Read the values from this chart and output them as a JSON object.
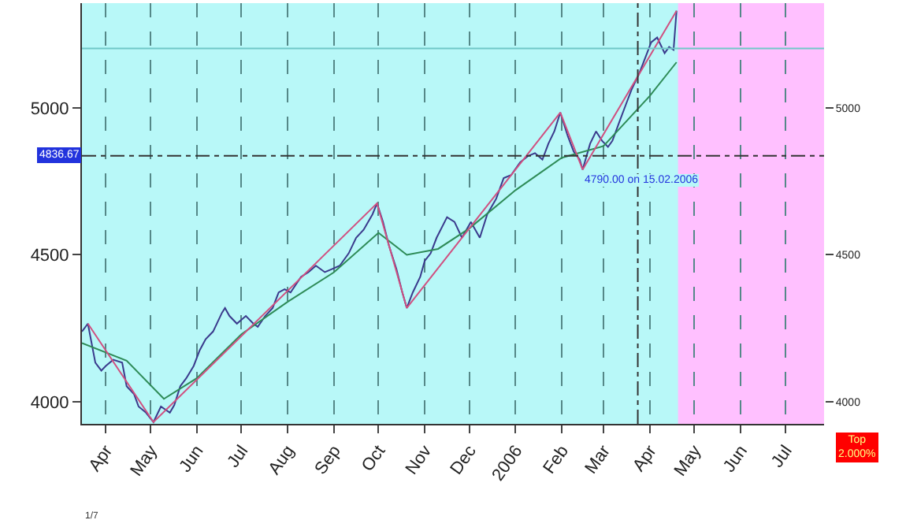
{
  "chart_data": {
    "type": "line",
    "x": [
      "2005-03-16",
      "2005-03-20",
      "2005-03-25",
      "2005-03-29",
      "2005-04-01",
      "2005-04-06",
      "2005-04-12",
      "2005-04-15",
      "2005-04-20",
      "2005-04-23",
      "2005-04-28",
      "2005-05-03",
      "2005-05-08",
      "2005-05-14",
      "2005-05-17",
      "2005-05-21",
      "2005-05-25",
      "2005-05-30",
      "2005-06-03",
      "2005-06-07",
      "2005-06-12",
      "2005-06-18",
      "2005-06-20",
      "2005-06-23",
      "2005-06-28",
      "2005-07-04",
      "2005-07-09",
      "2005-07-12",
      "2005-07-17",
      "2005-07-22",
      "2005-07-26",
      "2005-07-30",
      "2005-08-03",
      "2005-08-10",
      "2005-08-15",
      "2005-08-20",
      "2005-08-26",
      "2005-08-31",
      "2005-09-05",
      "2005-09-11",
      "2005-09-16",
      "2005-09-21",
      "2005-09-27",
      "2005-09-30",
      "2005-10-04",
      "2005-10-08",
      "2005-10-13",
      "2005-10-17",
      "2005-10-20",
      "2005-10-24",
      "2005-10-29",
      "2005-11-01",
      "2005-11-05",
      "2005-11-09",
      "2005-11-16",
      "2005-11-21",
      "2005-11-26",
      "2005-12-02",
      "2005-12-08",
      "2005-12-13",
      "2005-12-19",
      "2005-12-24",
      "2005-12-29",
      "2006-01-04",
      "2006-01-09",
      "2006-01-14",
      "2006-01-19",
      "2006-01-23",
      "2006-01-27",
      "2006-01-31",
      "2006-02-05",
      "2006-02-09",
      "2006-02-13",
      "2006-02-15",
      "2006-02-20",
      "2006-02-24",
      "2006-02-28",
      "2006-03-04",
      "2006-03-07",
      "2006-03-12",
      "2006-03-16",
      "2006-03-20",
      "2006-03-25",
      "2006-03-29",
      "2006-04-02",
      "2006-04-06",
      "2006-04-11",
      "2006-04-14",
      "2006-04-17",
      "2006-04-19"
    ],
    "series": [
      {
        "color": "#3a3a8c",
        "values": [
          4239,
          4266,
          4133,
          4106,
          4122,
          4143,
          4133,
          4053,
          4026,
          3984,
          3963,
          3931,
          3984,
          3963,
          3989,
          4053,
          4080,
          4122,
          4175,
          4213,
          4239,
          4303,
          4319,
          4292,
          4266,
          4292,
          4266,
          4255,
          4292,
          4319,
          4372,
          4383,
          4372,
          4425,
          4441,
          4463,
          4441,
          4452,
          4463,
          4505,
          4558,
          4585,
          4638,
          4675,
          4612,
          4532,
          4452,
          4372,
          4319,
          4372,
          4425,
          4479,
          4505,
          4558,
          4628,
          4612,
          4558,
          4612,
          4558,
          4638,
          4691,
          4761,
          4771,
          4814,
          4835,
          4846,
          4824,
          4878,
          4920,
          4984,
          4904,
          4851,
          4824,
          4790,
          4878,
          4920,
          4888,
          4867,
          4888,
          4957,
          5011,
          5064,
          5117,
          5170,
          5223,
          5239,
          5186,
          5207,
          5197,
          5330
        ]
      },
      {
        "color": "#2e8b57",
        "x": [
          "2005-03-16",
          "2005-04-15",
          "2005-05-10",
          "2005-06-01",
          "2005-07-01",
          "2005-08-01",
          "2005-09-01",
          "2005-10-01",
          "2005-10-20",
          "2005-11-10",
          "2005-12-01",
          "2006-01-01",
          "2006-02-01",
          "2006-03-01",
          "2006-04-01",
          "2006-04-19"
        ],
        "values": [
          4200,
          4140,
          4010,
          4080,
          4230,
          4340,
          4440,
          4575,
          4500,
          4520,
          4590,
          4720,
          4830,
          4870,
          5040,
          5155
        ]
      },
      {
        "color": "#d05080",
        "x": [
          "2005-03-20",
          "2005-05-03",
          "2005-09-30",
          "2005-10-20",
          "2006-01-31",
          "2006-02-15",
          "2006-04-19"
        ],
        "values": [
          4266,
          3931,
          4675,
          4319,
          4984,
          4790,
          5330
        ]
      }
    ],
    "xlim": [
      "2005-03-16",
      "2006-07-27"
    ],
    "xticks": [
      {
        "value": "2005-04-01",
        "label": "Apr"
      },
      {
        "value": "2005-05-01",
        "label": "May"
      },
      {
        "value": "2005-06-01",
        "label": "Jun"
      },
      {
        "value": "2005-07-01",
        "label": "Jul"
      },
      {
        "value": "2005-08-01",
        "label": "Aug"
      },
      {
        "value": "2005-09-01",
        "label": "Sep"
      },
      {
        "value": "2005-10-01",
        "label": "Oct"
      },
      {
        "value": "2005-11-01",
        "label": "Nov"
      },
      {
        "value": "2005-12-01",
        "label": "Dec"
      },
      {
        "value": "2006-01-01",
        "label": "2006"
      },
      {
        "value": "2006-02-01",
        "label": "Feb"
      },
      {
        "value": "2006-03-01",
        "label": "Mar"
      },
      {
        "value": "2006-04-01",
        "label": "Apr"
      },
      {
        "value": "2006-05-01",
        "label": "May"
      },
      {
        "value": "2006-06-01",
        "label": "Jun"
      },
      {
        "value": "2006-07-01",
        "label": "Jul"
      }
    ],
    "ylim": [
      3925,
      5356
    ],
    "yticks": [
      4000,
      4500,
      5000
    ],
    "y2lim": [
      3925,
      5356
    ],
    "y2ticks": [
      4000,
      4500,
      5000
    ],
    "ref_lines": [
      {
        "axis": "y",
        "value": 5202,
        "color": "#70c8c8",
        "line_style": "solid"
      },
      {
        "axis": "y",
        "value": 4836.67,
        "label": "4836.67",
        "color": "#333333",
        "line_style": "dashdot"
      },
      {
        "axis": "x",
        "value": "2006-03-24",
        "color": "#333333",
        "line_style": "dashdot"
      }
    ],
    "bands": [
      {
        "axis": "x",
        "from": "2006-04-20",
        "to": "2006-07-27",
        "color": "#ffc0ff"
      }
    ],
    "annotations": [
      {
        "text": "4790.00 on 15.02.2006",
        "x": "2006-02-15",
        "y": 4790
      },
      "Top\n2.000%",
      "1/7"
    ],
    "grid": "x",
    "marker": "none",
    "line_style": "solid"
  }
}
